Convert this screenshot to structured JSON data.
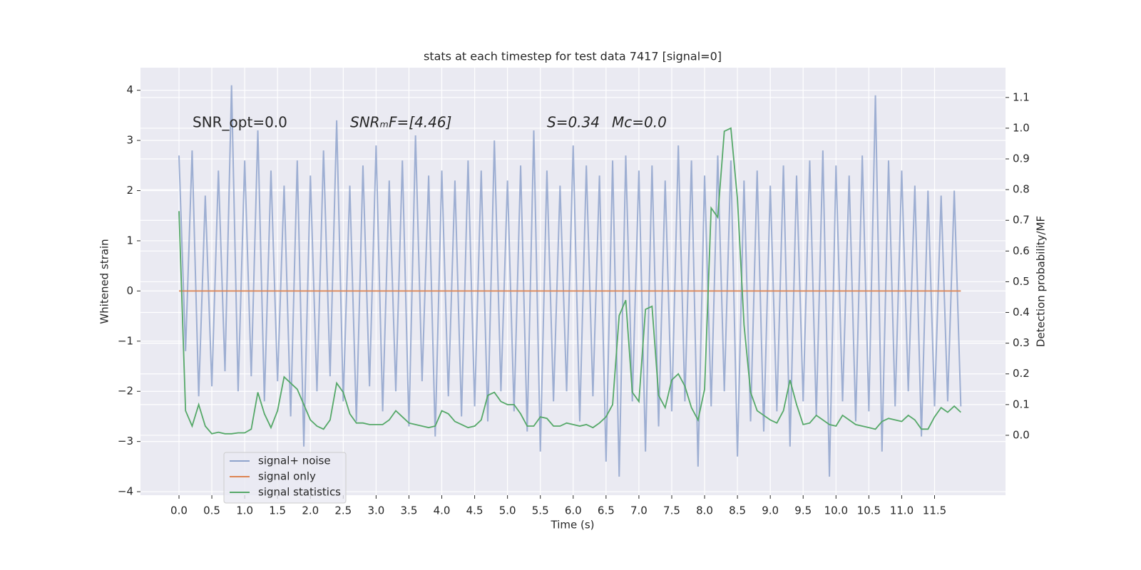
{
  "chart_data": {
    "type": "line",
    "title": "stats at each timestep for test data 7417 [signal=0]",
    "x_label": "Time (s)",
    "y_label": "Whitened strain",
    "y2_label": "Detection probability/MF",
    "annotations": [
      "SNR_opt=0.0",
      "SNRₘF=[4.46]",
      "S=0.34",
      "Mc=0.0"
    ],
    "grid": true,
    "legend": "lower left",
    "xlim": [
      -0.586,
      12.58
    ],
    "ylim": [
      -4.07,
      4.45
    ],
    "y2lim": [
      -0.195,
      1.197
    ],
    "xticks": [
      {
        "value": 0,
        "label": "0.0"
      },
      0.5,
      {
        "value": 1,
        "label": "1.0"
      },
      1.5,
      {
        "value": 2,
        "label": "2.0"
      },
      2.5,
      {
        "value": 3,
        "label": "3.0"
      },
      3.5,
      {
        "value": 4,
        "label": "4.0"
      },
      4.5,
      {
        "value": 5,
        "label": "5.0"
      },
      5.5,
      {
        "value": 6,
        "label": "6.0"
      },
      6.5,
      {
        "value": 7,
        "label": "7.0"
      },
      7.5,
      {
        "value": 8,
        "label": "8.0"
      },
      8.5,
      {
        "value": 9,
        "label": "9.0"
      },
      9.5,
      {
        "value": 10,
        "label": "10.0"
      },
      10.5,
      {
        "value": 11,
        "label": "11.0"
      },
      11.5
    ],
    "yticks": [
      {
        "value": -4,
        "label": "−4"
      },
      {
        "value": -3,
        "label": "−3"
      },
      {
        "value": -2,
        "label": "−2"
      },
      {
        "value": -1,
        "label": "−1"
      },
      0,
      1,
      2,
      3,
      4
    ],
    "y2ticks": [
      {
        "value": 0,
        "label": "0.0"
      },
      0.1,
      0.2,
      0.3,
      0.4,
      0.5,
      0.6,
      0.7,
      0.8,
      0.9,
      {
        "value": 1,
        "label": "1.0"
      },
      1.1
    ],
    "x": [
      0,
      0.1,
      0.2,
      0.3,
      0.4,
      0.5,
      0.6,
      0.7,
      0.8,
      0.9,
      1,
      1.1,
      1.2,
      1.3,
      1.4,
      1.5,
      1.6,
      1.7,
      1.8,
      1.9,
      2,
      2.1,
      2.2,
      2.3,
      2.4,
      2.5,
      2.6,
      2.7,
      2.8,
      2.9,
      3,
      3.1,
      3.2,
      3.3,
      3.4,
      3.5,
      3.6,
      3.7,
      3.8,
      3.9,
      4,
      4.1,
      4.2,
      4.3,
      4.4,
      4.5,
      4.6,
      4.7,
      4.8,
      4.9,
      5,
      5.1,
      5.2,
      5.3,
      5.4,
      5.5,
      5.6,
      5.7,
      5.8,
      5.9,
      6,
      6.1,
      6.2,
      6.3,
      6.4,
      6.5,
      6.6,
      6.7,
      6.8,
      6.9,
      7,
      7.1,
      7.2,
      7.3,
      7.4,
      7.5,
      7.6,
      7.7,
      7.8,
      7.9,
      8,
      8.1,
      8.2,
      8.3,
      8.4,
      8.5,
      8.6,
      8.7,
      8.8,
      8.9,
      9,
      9.1,
      9.2,
      9.3,
      9.4,
      9.5,
      9.6,
      9.7,
      9.8,
      9.9,
      10,
      10.1,
      10.2,
      10.3,
      10.4,
      10.5,
      10.6,
      10.7,
      10.8,
      10.9,
      11,
      11.1,
      11.2,
      11.3,
      11.4,
      11.5,
      11.6,
      11.7,
      11.8,
      11.9
    ],
    "series": [
      {
        "name": "signal+ noise",
        "color": "#8fa3cc",
        "values": [
          2.7,
          -1.2,
          2.8,
          -2.1,
          1.9,
          -1.9,
          2.4,
          -1.6,
          4.1,
          -2.0,
          2.6,
          -1.7,
          3.2,
          -2.2,
          2.4,
          -1.8,
          2.1,
          -2.5,
          2.6,
          -3.1,
          2.3,
          -2.0,
          2.8,
          -1.7,
          3.4,
          -2.2,
          2.1,
          -2.6,
          2.5,
          -1.9,
          2.9,
          -2.4,
          2.2,
          -2.0,
          2.6,
          -2.7,
          3.1,
          -1.8,
          2.3,
          -2.9,
          2.4,
          -2.1,
          2.2,
          -2.5,
          2.6,
          -2.3,
          2.4,
          -2.6,
          3.0,
          -2.0,
          2.2,
          -2.4,
          2.5,
          -2.8,
          3.2,
          -3.2,
          2.4,
          -2.2,
          2.1,
          -2.0,
          2.9,
          -2.6,
          2.5,
          -2.1,
          2.3,
          -3.4,
          2.6,
          -3.7,
          2.7,
          -2.2,
          2.4,
          -3.2,
          2.5,
          -2.7,
          2.2,
          -2.4,
          2.9,
          -2.2,
          2.6,
          -3.5,
          2.3,
          -2.3,
          2.7,
          -2.0,
          2.6,
          -3.3,
          2.2,
          -2.6,
          2.4,
          -2.8,
          2.1,
          -2.4,
          2.5,
          -3.1,
          2.3,
          -2.2,
          2.6,
          -2.5,
          2.8,
          -3.7,
          2.5,
          -2.2,
          2.3,
          -2.6,
          2.7,
          -2.4,
          3.9,
          -3.2,
          2.6,
          -2.3,
          2.4,
          -2.0,
          2.1,
          -2.9,
          2.0,
          -2.3,
          1.9,
          -2.2,
          2.0,
          -2.3
        ]
      },
      {
        "name": "signal only",
        "color": "#dd8452",
        "values": [
          0,
          0,
          0,
          0,
          0,
          0,
          0,
          0,
          0,
          0,
          0,
          0,
          0,
          0,
          0,
          0,
          0,
          0,
          0,
          0,
          0,
          0,
          0,
          0,
          0,
          0,
          0,
          0,
          0,
          0,
          0,
          0,
          0,
          0,
          0,
          0,
          0,
          0,
          0,
          0,
          0,
          0,
          0,
          0,
          0,
          0,
          0,
          0,
          0,
          0,
          0,
          0,
          0,
          0,
          0,
          0,
          0,
          0,
          0,
          0,
          0,
          0,
          0,
          0,
          0,
          0,
          0,
          0,
          0,
          0,
          0,
          0,
          0,
          0,
          0,
          0,
          0,
          0,
          0,
          0,
          0,
          0,
          0,
          0,
          0,
          0,
          0,
          0,
          0,
          0,
          0,
          0,
          0,
          0,
          0,
          0,
          0,
          0,
          0,
          0,
          0,
          0,
          0,
          0,
          0,
          0,
          0,
          0,
          0,
          0,
          0,
          0,
          0,
          0,
          0,
          0,
          0,
          0,
          0,
          0
        ]
      },
      {
        "name": "signal statistics",
        "color": "#55a868",
        "axis": "y2",
        "values": [
          0.73,
          0.08,
          0.03,
          0.1,
          0.03,
          0.005,
          0.01,
          0.005,
          0.005,
          0.008,
          0.008,
          0.02,
          0.14,
          0.07,
          0.025,
          0.08,
          0.19,
          0.17,
          0.15,
          0.1,
          0.05,
          0.03,
          0.02,
          0.05,
          0.17,
          0.14,
          0.07,
          0.04,
          0.04,
          0.035,
          0.035,
          0.035,
          0.05,
          0.08,
          0.06,
          0.04,
          0.035,
          0.03,
          0.025,
          0.03,
          0.08,
          0.07,
          0.045,
          0.035,
          0.025,
          0.03,
          0.05,
          0.13,
          0.14,
          0.11,
          0.1,
          0.1,
          0.07,
          0.03,
          0.03,
          0.06,
          0.055,
          0.03,
          0.03,
          0.04,
          0.035,
          0.03,
          0.035,
          0.025,
          0.04,
          0.06,
          0.1,
          0.39,
          0.44,
          0.14,
          0.11,
          0.41,
          0.42,
          0.13,
          0.09,
          0.18,
          0.2,
          0.16,
          0.09,
          0.05,
          0.15,
          0.74,
          0.71,
          0.99,
          1.0,
          0.77,
          0.36,
          0.14,
          0.08,
          0.065,
          0.05,
          0.04,
          0.08,
          0.18,
          0.1,
          0.035,
          0.04,
          0.065,
          0.05,
          0.035,
          0.03,
          0.065,
          0.05,
          0.035,
          0.03,
          0.025,
          0.02,
          0.045,
          0.055,
          0.05,
          0.045,
          0.065,
          0.05,
          0.02,
          0.02,
          0.06,
          0.09,
          0.075,
          0.095,
          0.075
        ]
      }
    ]
  }
}
